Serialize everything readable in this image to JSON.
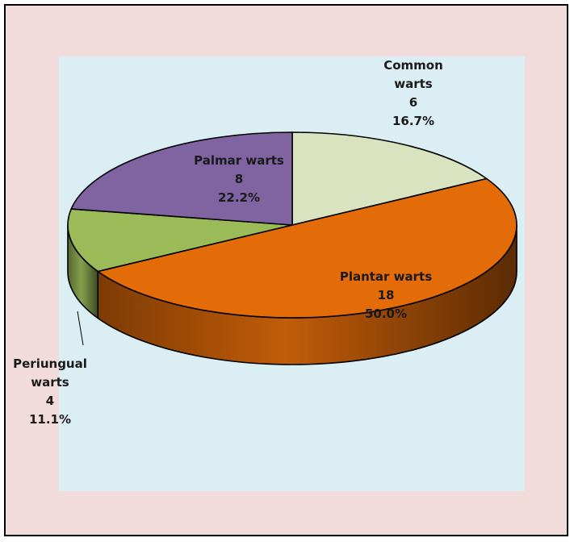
{
  "chart_data": {
    "type": "pie",
    "style": "3d-exploded-none",
    "slices": [
      {
        "name_lines": [
          "Common",
          "warts"
        ],
        "value": 6,
        "percent": "16.7%",
        "color": "#d9e3bf"
      },
      {
        "name_lines": [
          "Plantar warts"
        ],
        "value": 18,
        "percent": "50.0%",
        "color": "#e36c09"
      },
      {
        "name_lines": [
          "Periungual",
          "warts"
        ],
        "value": 4,
        "percent": "11.1%",
        "color": "#9bbb59"
      },
      {
        "name_lines": [
          "Palmar warts"
        ],
        "value": 8,
        "percent": "22.2%",
        "color": "#8064a2"
      }
    ],
    "colors": {
      "outer_background": "#f2dcdb",
      "plot_background": "#daeef3"
    },
    "legend": "none"
  }
}
